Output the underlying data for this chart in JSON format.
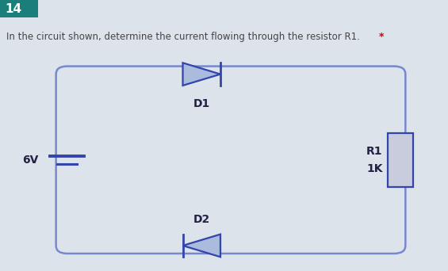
{
  "bg_color": "#dde3ea",
  "header_bg": "#1a7f7a",
  "header_text": "14",
  "header_text_color": "#ffffff",
  "question_text": "In the circuit shown, determine the current flowing through the resistor R1.  *",
  "question_color": "#444444",
  "asterisk_color": "#cc0000",
  "circuit_wire_color": "#7788cc",
  "diode_fill": "#aabbdd",
  "diode_line": "#3344aa",
  "label_color": "#222244",
  "resistor_fill": "#c8ccdd",
  "voltage_label": "6V",
  "d1_label": "D1",
  "d2_label": "D2",
  "r1_label": "R1",
  "r1_value": "1K"
}
